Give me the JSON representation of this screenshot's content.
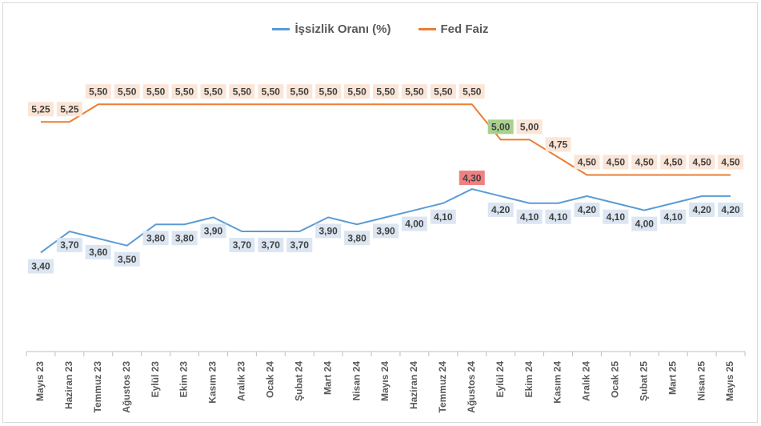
{
  "chart_data": {
    "type": "line",
    "title": "",
    "xlabel": "",
    "ylabel": "",
    "legend_position": "top",
    "grid": false,
    "categories": [
      "Mayıs 23",
      "Haziran 23",
      "Temmuz 23",
      "Ağustos 23",
      "Eylül 23",
      "Ekim 23",
      "Kasım 23",
      "Aralık 23",
      "Ocak 24",
      "Şubat 24",
      "Mart 24",
      "Nisan 24",
      "Mayıs 24",
      "Haziran 24",
      "Temmuz 24",
      "Ağustos 24",
      "Eylül 24",
      "Ekim 24",
      "Kasım 24",
      "Aralık 24",
      "Ocak 25",
      "Şubat 25",
      "Mart 25",
      "Nisan 25",
      "Mayıs 25"
    ],
    "series": [
      {
        "name": "İşsizlik Oranı (%)",
        "color": "#5b9bd5",
        "label_bg": "#dce6f2",
        "values": [
          3.4,
          3.7,
          3.6,
          3.5,
          3.8,
          3.8,
          3.9,
          3.7,
          3.7,
          3.7,
          3.9,
          3.8,
          3.9,
          4.0,
          4.1,
          4.3,
          4.2,
          4.1,
          4.1,
          4.2,
          4.1,
          4.0,
          4.1,
          4.2,
          4.2
        ],
        "labels": [
          "3,40",
          "3,70",
          "3,60",
          "3,50",
          "3,80",
          "3,80",
          "3,90",
          "3,70",
          "3,70",
          "3,70",
          "3,90",
          "3,80",
          "3,90",
          "4,00",
          "4,10",
          "4,30",
          "4,20",
          "4,10",
          "4,10",
          "4,20",
          "4,10",
          "4,00",
          "4,10",
          "4,20",
          "4,20"
        ]
      },
      {
        "name": "Fed Faiz",
        "color": "#ed7d31",
        "label_bg": "#fbe5d6",
        "values": [
          5.25,
          5.25,
          5.5,
          5.5,
          5.5,
          5.5,
          5.5,
          5.5,
          5.5,
          5.5,
          5.5,
          5.5,
          5.5,
          5.5,
          5.5,
          5.5,
          5.0,
          5.0,
          4.75,
          4.5,
          4.5,
          4.5,
          4.5,
          4.5,
          4.5
        ],
        "labels": [
          "5,25",
          "5,25",
          "5,50",
          "5,50",
          "5,50",
          "5,50",
          "5,50",
          "5,50",
          "5,50",
          "5,50",
          "5,50",
          "5,50",
          "5,50",
          "5,50",
          "5,50",
          "5,50",
          "5,00",
          "5,00",
          "4,75",
          "4,50",
          "4,50",
          "4,50",
          "4,50",
          "4,50",
          "4,50"
        ]
      }
    ],
    "highlights": [
      {
        "series": 0,
        "index": 15,
        "color": "#f08080"
      },
      {
        "series": 1,
        "index": 16,
        "color": "#a9d18e"
      }
    ],
    "ylim": [
      2.0,
      6.5
    ]
  }
}
